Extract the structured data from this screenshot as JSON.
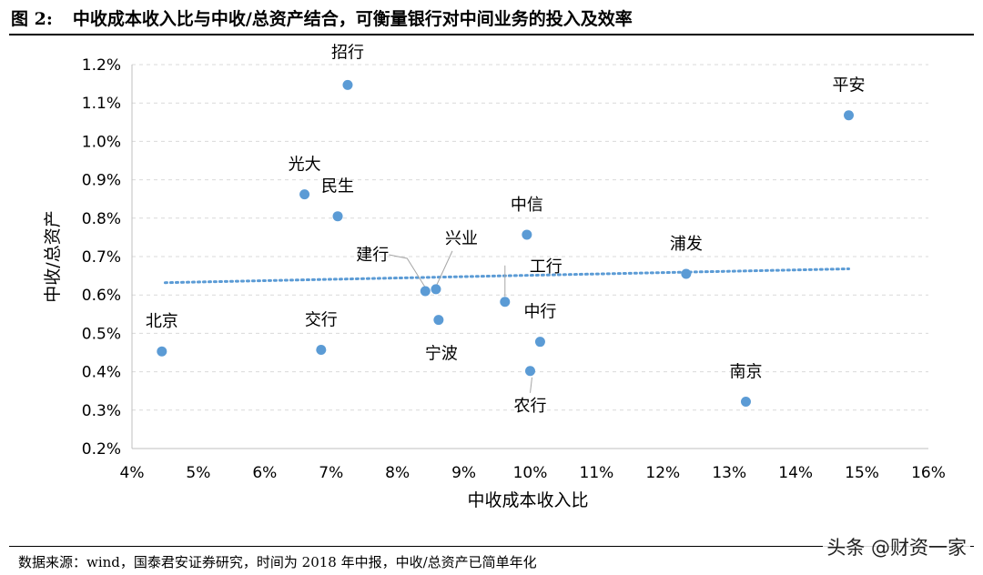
{
  "figure": {
    "number": "图 2:",
    "caption": "中收成本收入比与中收/总资产结合，可衡量银行对中间业务的投入及效率"
  },
  "source": "数据来源：wind，国泰君安证券研究，时间为 2018 年中报，中收/总资产已简单年化",
  "watermark": "头条 @财资一家",
  "colors": {
    "point": "#5b9bd5",
    "trendline": "#5b9bd5",
    "grid": "#d9d9d9"
  },
  "chart_data": {
    "type": "scatter",
    "xlabel": "中收成本收入比",
    "ylabel": "中收/总资产",
    "xlim": [
      0.04,
      0.16
    ],
    "ylim": [
      0.002,
      0.012
    ],
    "x_ticks": [
      "4%",
      "5%",
      "6%",
      "7%",
      "8%",
      "9%",
      "10%",
      "11%",
      "12%",
      "13%",
      "14%",
      "15%",
      "16%"
    ],
    "y_ticks": [
      "0.2%",
      "0.3%",
      "0.4%",
      "0.5%",
      "0.6%",
      "0.7%",
      "0.8%",
      "0.9%",
      "1.0%",
      "1.1%",
      "1.2%"
    ],
    "grid": "horizontal-dashed",
    "trendline": {
      "type": "linear",
      "x": [
        0.045,
        0.148
      ],
      "y": [
        0.00632,
        0.00668
      ]
    },
    "points": [
      {
        "label": "招行",
        "x": 0.0725,
        "y": 0.01147
      },
      {
        "label": "平安",
        "x": 0.148,
        "y": 0.01068
      },
      {
        "label": "光大",
        "x": 0.066,
        "y": 0.00862
      },
      {
        "label": "民生",
        "x": 0.071,
        "y": 0.00805
      },
      {
        "label": "中信",
        "x": 0.0995,
        "y": 0.00757
      },
      {
        "label": "浦发",
        "x": 0.1235,
        "y": 0.00655
      },
      {
        "label": "建行",
        "x": 0.0842,
        "y": 0.0061
      },
      {
        "label": "兴业",
        "x": 0.0858,
        "y": 0.00615
      },
      {
        "label": "工行",
        "x": 0.0962,
        "y": 0.00582
      },
      {
        "label": "宁波",
        "x": 0.0862,
        "y": 0.00535
      },
      {
        "label": "中行",
        "x": 0.1015,
        "y": 0.00478
      },
      {
        "label": "北京",
        "x": 0.0445,
        "y": 0.00453
      },
      {
        "label": "交行",
        "x": 0.0685,
        "y": 0.00457
      },
      {
        "label": "农行",
        "x": 0.1,
        "y": 0.00402
      },
      {
        "label": "南京",
        "x": 0.1325,
        "y": 0.00322
      }
    ]
  }
}
